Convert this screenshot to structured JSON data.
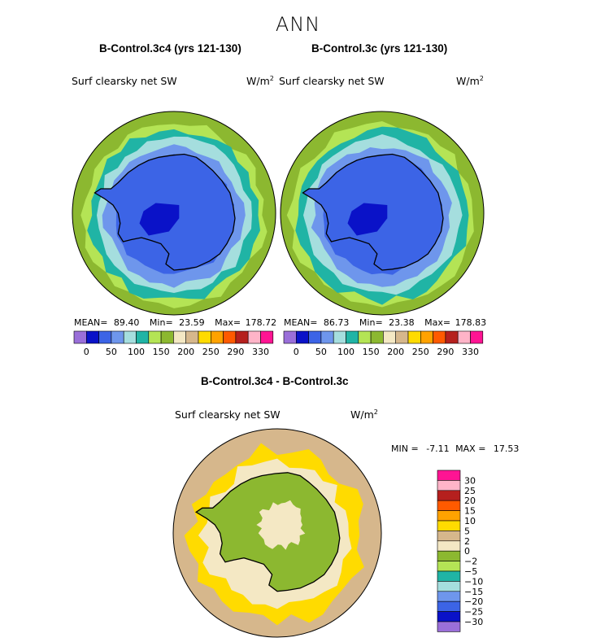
{
  "page": {
    "title": "ANN"
  },
  "panels": [
    {
      "title": "B-Control.3c4 (yrs 121-130)",
      "variable": "Surf clearsky net SW",
      "units": "W/m",
      "units_exp": "2",
      "mean_label": "MEAN=",
      "mean": "89.40",
      "min_label": "Min=",
      "min": "23.59",
      "max_label": "Max=",
      "max": "178.72"
    },
    {
      "title": "B-Control.3c (yrs 121-130)",
      "variable": "Surf clearsky net SW",
      "units": "W/m",
      "units_exp": "2",
      "mean_label": "MEAN=",
      "mean": "86.73",
      "min_label": "Min=",
      "min": "23.38",
      "max_label": "Max=",
      "max": "178.83"
    }
  ],
  "diff_panel": {
    "title": "B-Control.3c4 - B-Control.3c",
    "variable": "Surf clearsky net SW",
    "units": "W/m",
    "units_exp": "2",
    "min_label": "MIN =",
    "min": "-7.11",
    "max_label": "MAX =",
    "max": "17.53"
  },
  "chart_data": [
    {
      "type": "heatmap",
      "projection": "south-polar-stereographic",
      "title": "B-Control.3c4 (yrs 121-130)",
      "variable": "Surf clearsky net SW",
      "units": "W/m^2",
      "stats": {
        "mean": 89.4,
        "min": 23.59,
        "max": 178.72
      },
      "colorbar": {
        "orientation": "horizontal",
        "tick_labels": [
          "0",
          "50",
          "100",
          "150",
          "200",
          "250",
          "290",
          "330"
        ],
        "colors": [
          "#9a6fd9",
          "#0a12c8",
          "#3c64e6",
          "#6e96ec",
          "#a5dede",
          "#20b4a5",
          "#b4e455",
          "#8cb830",
          "#f4e8c4",
          "#d6b78c",
          "#ffdb00",
          "#ffa200",
          "#ff5a00",
          "#b5201e",
          "#ffb4c8",
          "#ff1493"
        ]
      },
      "zones": [
        {
          "name": "antarctic-continent",
          "approx_value": 40
        },
        {
          "name": "polar-plateau-minimum",
          "approx_value": 25
        },
        {
          "name": "southern-ocean-ice",
          "approx_value": 60
        },
        {
          "name": "open-ocean-mid-latitude",
          "approx_value": 120
        },
        {
          "name": "outer-ring",
          "approx_value": 160
        }
      ]
    },
    {
      "type": "heatmap",
      "projection": "south-polar-stereographic",
      "title": "B-Control.3c (yrs 121-130)",
      "variable": "Surf clearsky net SW",
      "units": "W/m^2",
      "stats": {
        "mean": 86.73,
        "min": 23.38,
        "max": 178.83
      },
      "colorbar": {
        "orientation": "horizontal",
        "tick_labels": [
          "0",
          "50",
          "100",
          "150",
          "200",
          "250",
          "290",
          "330"
        ],
        "colors": [
          "#9a6fd9",
          "#0a12c8",
          "#3c64e6",
          "#6e96ec",
          "#a5dede",
          "#20b4a5",
          "#b4e455",
          "#8cb830",
          "#f4e8c4",
          "#d6b78c",
          "#ffdb00",
          "#ffa200",
          "#ff5a00",
          "#b5201e",
          "#ffb4c8",
          "#ff1493"
        ]
      },
      "zones": [
        {
          "name": "antarctic-continent",
          "approx_value": 40
        },
        {
          "name": "polar-plateau-minimum",
          "approx_value": 25
        },
        {
          "name": "southern-ocean-ice",
          "approx_value": 60
        },
        {
          "name": "open-ocean-mid-latitude",
          "approx_value": 120
        },
        {
          "name": "outer-ring",
          "approx_value": 160
        }
      ]
    },
    {
      "type": "heatmap",
      "projection": "south-polar-stereographic",
      "title": "B-Control.3c4 - B-Control.3c",
      "variable": "Surf clearsky net SW",
      "units": "W/m^2",
      "stats": {
        "min": -7.11,
        "max": 17.53
      },
      "colorbar": {
        "orientation": "vertical",
        "tick_labels": [
          "30",
          "25",
          "20",
          "15",
          "10",
          "5",
          "2",
          "0",
          "−2",
          "−5",
          "−10",
          "−15",
          "−20",
          "−25",
          "−30"
        ],
        "colors": [
          "#ff1493",
          "#ffb4c8",
          "#b5201e",
          "#ff5a00",
          "#ffa200",
          "#ffdb00",
          "#d6b78c",
          "#f4e8c4",
          "#8cb830",
          "#b4e455",
          "#20b4a5",
          "#a5dede",
          "#6e96ec",
          "#3c64e6",
          "#0a12c8",
          "#9a6fd9"
        ]
      },
      "zones": [
        {
          "name": "antarctic-interior",
          "approx_value": 0
        },
        {
          "name": "sea-ice-ring",
          "approx_value": 7
        },
        {
          "name": "outer-ocean",
          "approx_value": 2
        },
        {
          "name": "weddell-negative",
          "approx_value": -3
        }
      ]
    }
  ]
}
